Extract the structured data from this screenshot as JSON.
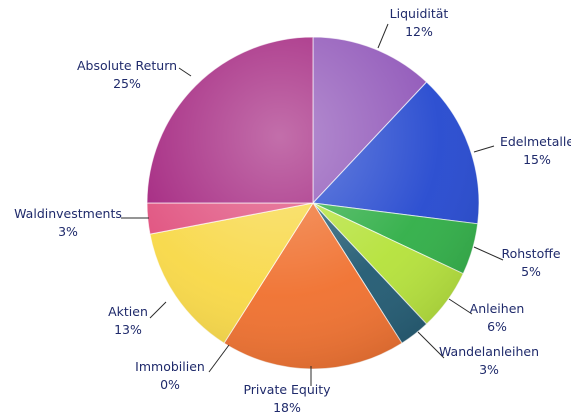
{
  "chart_data": {
    "type": "pie",
    "title": "",
    "start_angle_deg": 0,
    "direction": "clockwise",
    "slices": [
      {
        "label": "Liquidität",
        "value": 12,
        "value_label": "12%",
        "color": "#8f55b8"
      },
      {
        "label": "Edelmetalle",
        "value": 15,
        "value_label": "15%",
        "color": "#2448cf"
      },
      {
        "label": "Rohstoffe",
        "value": 5,
        "value_label": "5%",
        "color": "#2fae46"
      },
      {
        "label": "Anleihen",
        "value": 6,
        "value_label": "6%",
        "color": "#b5e23a"
      },
      {
        "label": "Wandelanleihen",
        "value": 3,
        "value_label": "3%",
        "color": "#215a72"
      },
      {
        "label": "Private Equity",
        "value": 18,
        "value_label": "18%",
        "color": "#f0702e"
      },
      {
        "label": "Immobilien",
        "value": 0,
        "value_label": "0%",
        "color": "#d0d0d0"
      },
      {
        "label": "Aktien",
        "value": 13,
        "value_label": "13%",
        "color": "#f8d846"
      },
      {
        "label": "Waldinvestments",
        "value": 3,
        "value_label": "3%",
        "color": "#e0507e"
      },
      {
        "label": "Absolute Return",
        "value": 25,
        "value_label": "25%",
        "color": "#a2217d"
      }
    ]
  }
}
